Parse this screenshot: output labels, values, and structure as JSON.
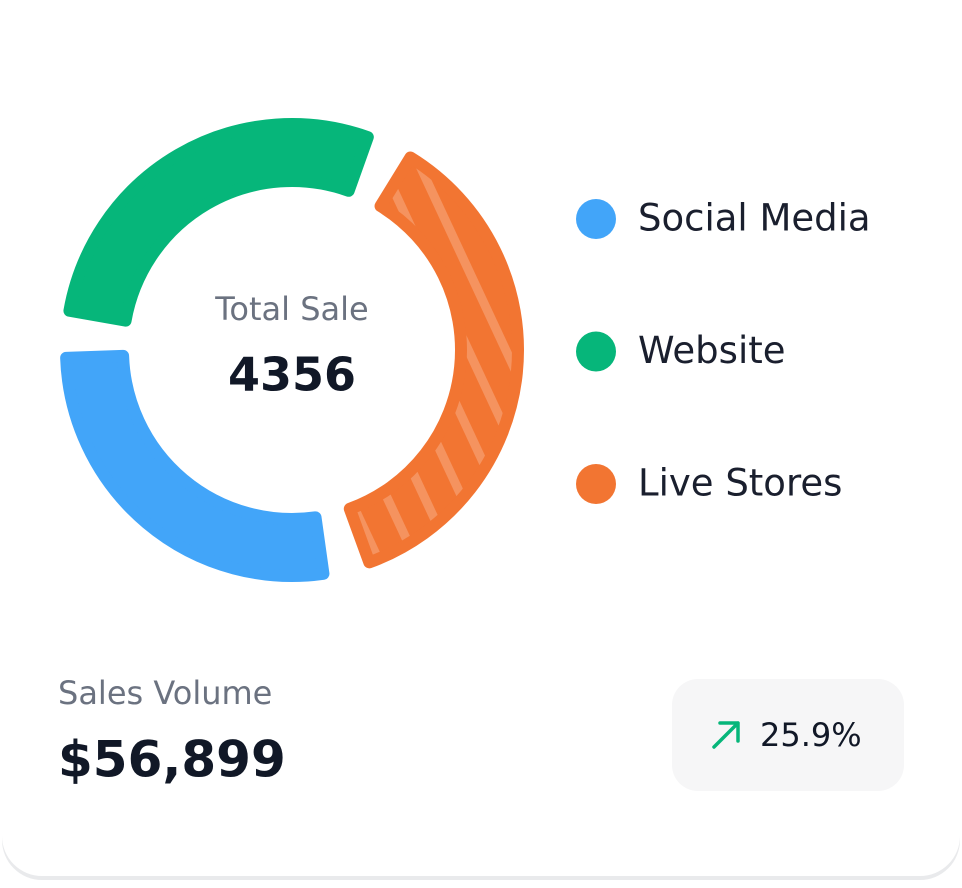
{
  "chart_data": {
    "type": "donut",
    "center_label": "Total Sale",
    "center_value": 4356,
    "categories": [
      "Social Media",
      "Website",
      "Live Stores"
    ],
    "values": [
      30,
      31,
      39
    ],
    "colors": [
      "#42a5f9",
      "#06b67a",
      "#f27532"
    ],
    "hatched": [
      false,
      false,
      true
    ]
  },
  "summary": {
    "label": "Sales Volume",
    "value": "$56,899",
    "change": "25.9%",
    "trend_color": "#06b67a"
  }
}
